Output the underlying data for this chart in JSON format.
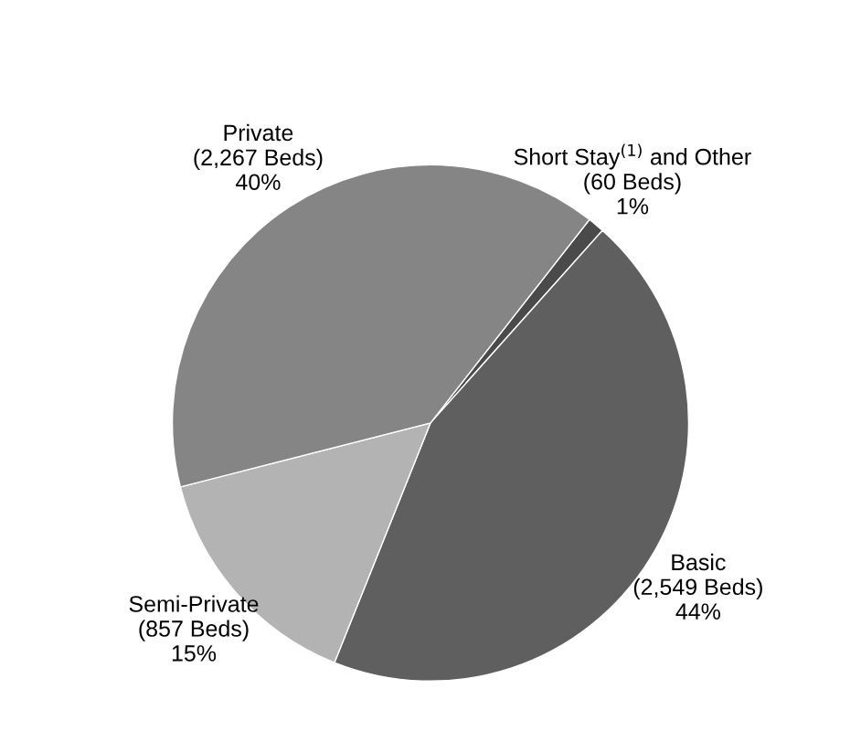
{
  "chart_data": {
    "type": "pie",
    "categories": [
      "Short Stay$^{(1)}$ and Other",
      "Basic",
      "Semi-Private",
      "Private"
    ],
    "values": [
      60,
      2549,
      857,
      2267
    ],
    "value_labels": [
      "(60 Beds)\n1%",
      "(2,549 Beds)\n44%",
      "(857 Beds)\n15%",
      "(2,267 Beds)\n40%"
    ],
    "colors": [
      "#4a4a4a",
      "#5f5f5f",
      "#b3b3b3",
      "#858585"
    ]
  }
}
